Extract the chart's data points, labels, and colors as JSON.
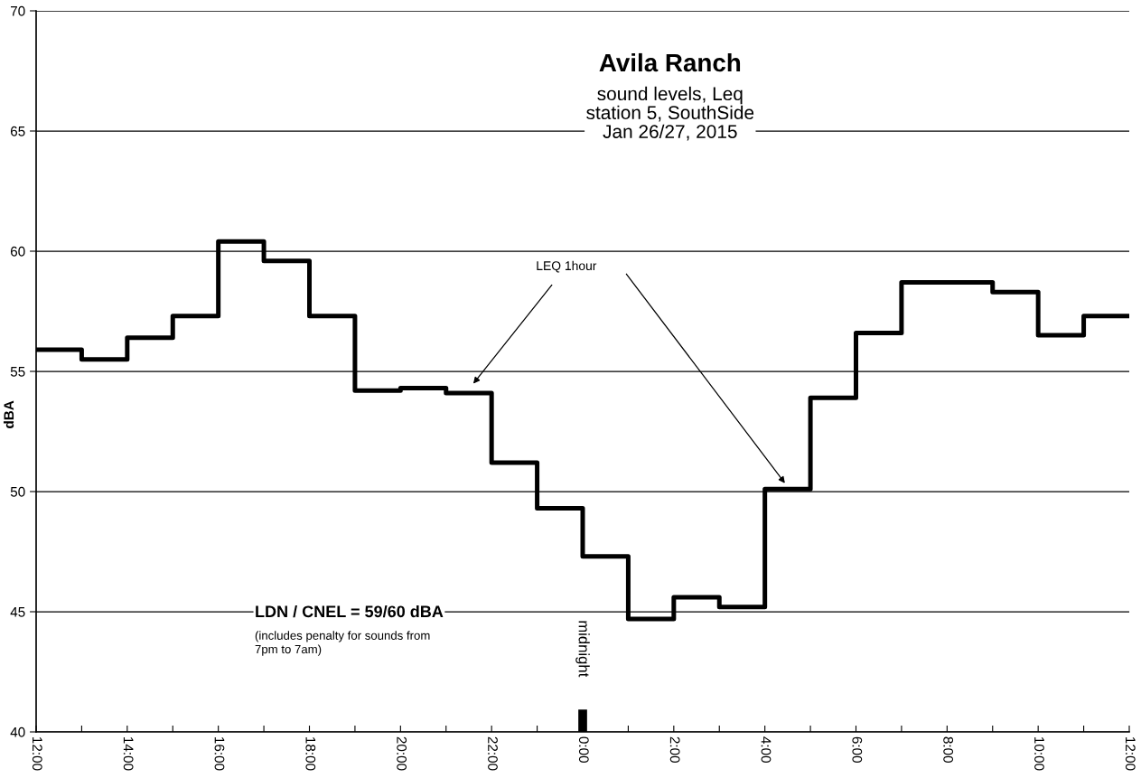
{
  "chart_data": {
    "type": "step",
    "title": "Avila Ranch",
    "subtitle": "sound levels, Leq\nstation 5, SouthSide\nJan 26/27, 2015",
    "ylabel": "dBA",
    "x": [
      "2015-01-26T12:00",
      "2015-01-26T13:00",
      "2015-01-26T14:00",
      "2015-01-26T15:00",
      "2015-01-26T16:00",
      "2015-01-26T17:00",
      "2015-01-26T18:00",
      "2015-01-26T19:00",
      "2015-01-26T20:00",
      "2015-01-26T21:00",
      "2015-01-26T22:00",
      "2015-01-26T23:00",
      "2015-01-27T00:00",
      "2015-01-27T01:00",
      "2015-01-27T02:00",
      "2015-01-27T03:00",
      "2015-01-27T04:00",
      "2015-01-27T05:00",
      "2015-01-27T06:00",
      "2015-01-27T07:00",
      "2015-01-27T08:00",
      "2015-01-27T09:00",
      "2015-01-27T10:00",
      "2015-01-27T11:00",
      "2015-01-27T12:00"
    ],
    "series": [
      {
        "color": "#000000",
        "values": [
          55.9,
          55.5,
          56.4,
          57.3,
          60.4,
          59.6,
          57.3,
          54.2,
          54.3,
          54.1,
          51.2,
          49.3,
          47.3,
          44.7,
          45.6,
          45.2,
          50.1,
          53.9,
          56.6,
          58.7,
          58.7,
          58.3,
          56.5,
          57.3,
          57.3
        ]
      }
    ],
    "xlim": [
      "2015-01-26T12:00",
      "2015-01-27T12:00"
    ],
    "ylim": [
      40,
      70
    ],
    "xticks": [
      {
        "value": "2015-01-26T12:00",
        "label": "12:00"
      },
      {
        "value": "2015-01-26T13:00",
        "label": null
      },
      {
        "value": "2015-01-26T14:00",
        "label": "14:00"
      },
      {
        "value": "2015-01-26T15:00",
        "label": null
      },
      {
        "value": "2015-01-26T16:00",
        "label": "16:00"
      },
      {
        "value": "2015-01-26T17:00",
        "label": null
      },
      {
        "value": "2015-01-26T18:00",
        "label": "18:00"
      },
      {
        "value": "2015-01-26T19:00",
        "label": null
      },
      {
        "value": "2015-01-26T20:00",
        "label": "20:00"
      },
      {
        "value": "2015-01-26T21:00",
        "label": null
      },
      {
        "value": "2015-01-26T22:00",
        "label": "22:00"
      },
      {
        "value": "2015-01-26T23:00",
        "label": null
      },
      {
        "value": "2015-01-27T00:00",
        "label": "0:00"
      },
      {
        "value": "2015-01-27T01:00",
        "label": null
      },
      {
        "value": "2015-01-27T02:00",
        "label": "2:00"
      },
      {
        "value": "2015-01-27T03:00",
        "label": null
      },
      {
        "value": "2015-01-27T04:00",
        "label": "4:00"
      },
      {
        "value": "2015-01-27T05:00",
        "label": null
      },
      {
        "value": "2015-01-27T06:00",
        "label": "6:00"
      },
      {
        "value": "2015-01-27T07:00",
        "label": null
      },
      {
        "value": "2015-01-27T08:00",
        "label": "8:00"
      },
      {
        "value": "2015-01-27T09:00",
        "label": null
      },
      {
        "value": "2015-01-27T10:00",
        "label": "10:00"
      },
      {
        "value": "2015-01-27T11:00",
        "label": null
      },
      {
        "value": "2015-01-27T12:00",
        "label": "12:00"
      }
    ],
    "yticks": [
      40,
      45,
      50,
      55,
      60,
      65,
      70
    ],
    "grid": "y",
    "line_style": "solid",
    "marker": "none",
    "annotations": [
      "LEQ 1hour",
      "midnight",
      "LDN / CNEL = 59/60 dBA",
      "(includes penalty for sounds from\n7pm to 7am)"
    ]
  }
}
